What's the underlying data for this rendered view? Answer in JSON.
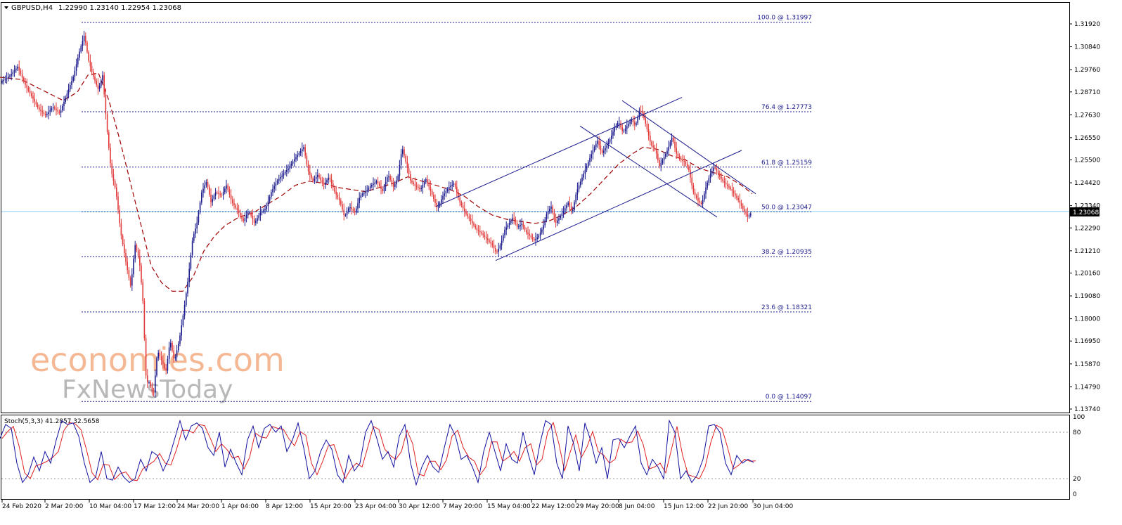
{
  "header": {
    "symbol": "GBPUSD,H4",
    "ohlc": "1.22990 1.23140 1.22954 1.23068"
  },
  "price_axis": {
    "ticks": [
      "1.31920",
      "1.30840",
      "1.29760",
      "1.28710",
      "1.27630",
      "1.26550",
      "1.25500",
      "1.24420",
      "1.23340",
      "1.22290",
      "1.21210",
      "1.20160",
      "1.19080",
      "1.18000",
      "1.16950",
      "1.15870",
      "1.14790",
      "1.13740"
    ],
    "current_price": "1.23068"
  },
  "time_axis": {
    "labels": [
      "24 Feb 2020",
      "2 Mar 20:00",
      "10 Mar 04:00",
      "17 Mar 12:00",
      "24 Mar 20:00",
      "1 Apr 04:00",
      "8 Apr 12:00",
      "15 Apr 20:00",
      "23 Apr 04:00",
      "30 Apr 12:00",
      "7 May 20:00",
      "15 May 04:00",
      "22 May 12:00",
      "29 May 20:00",
      "8 Jun 04:00",
      "15 Jun 12:00",
      "22 Jun 20:00",
      "30 Jun 04:00"
    ]
  },
  "stochastic": {
    "label": "Stoch(5,3,3) 41.2857 32.5658",
    "ticks": [
      "100",
      "80",
      "20",
      "0"
    ]
  },
  "watermark": {
    "line1": "economies.com",
    "line2": "FxNewsToday"
  },
  "colors": {
    "bull": "#1a1a8c",
    "bear": "#e23a3a",
    "ma": "#a00000",
    "fib": "#1a1a8c",
    "current_line": "#87cefa",
    "stoch_main": "#1010a0",
    "stoch_signal": "#e02020",
    "watermark_orange": "#f0a070",
    "watermark_gray": "#9a9a9a"
  },
  "chart_data": {
    "type": "candlestick",
    "symbol": "GBPUSD",
    "timeframe": "H4",
    "ylim": [
      1.133,
      1.325
    ],
    "fibonacci": [
      {
        "label": "100.0 @ 1.31997",
        "price": 1.31997
      },
      {
        "label": "76.4 @ 1.27773",
        "price": 1.27773
      },
      {
        "label": "61.8 @ 1.25159",
        "price": 1.25159
      },
      {
        "label": "50.0 @ 1.23047",
        "price": 1.23047
      },
      {
        "label": "38.2 @ 1.20935",
        "price": 1.20935
      },
      {
        "label": "23.6 @ 1.18321",
        "price": 1.18321
      },
      {
        "label": "0.0 @ 1.14097",
        "price": 1.14097
      }
    ],
    "close_path": [
      [
        0,
        1.2915
      ],
      [
        15,
        1.295
      ],
      [
        25,
        1.299
      ],
      [
        35,
        1.291
      ],
      [
        45,
        1.285
      ],
      [
        55,
        1.279
      ],
      [
        65,
        1.276
      ],
      [
        75,
        1.28
      ],
      [
        85,
        1.277
      ],
      [
        95,
        1.286
      ],
      [
        105,
        1.295
      ],
      [
        112,
        1.305
      ],
      [
        120,
        1.314
      ],
      [
        126,
        1.302
      ],
      [
        132,
        1.295
      ],
      [
        140,
        1.288
      ],
      [
        146,
        1.295
      ],
      [
        152,
        1.27
      ],
      [
        158,
        1.25
      ],
      [
        165,
        1.24
      ],
      [
        172,
        1.22
      ],
      [
        180,
        1.205
      ],
      [
        186,
        1.195
      ],
      [
        192,
        1.215
      ],
      [
        198,
        1.208
      ],
      [
        203,
        1.19
      ],
      [
        208,
        1.15
      ],
      [
        213,
        1.15
      ],
      [
        218,
        1.143
      ],
      [
        224,
        1.165
      ],
      [
        230,
        1.16
      ],
      [
        236,
        1.155
      ],
      [
        242,
        1.17
      ],
      [
        248,
        1.16
      ],
      [
        255,
        1.17
      ],
      [
        262,
        1.185
      ],
      [
        268,
        1.2
      ],
      [
        274,
        1.218
      ],
      [
        280,
        1.225
      ],
      [
        287,
        1.24
      ],
      [
        294,
        1.245
      ],
      [
        300,
        1.235
      ],
      [
        307,
        1.24
      ],
      [
        315,
        1.238
      ],
      [
        322,
        1.243
      ],
      [
        330,
        1.235
      ],
      [
        338,
        1.231
      ],
      [
        346,
        1.226
      ],
      [
        354,
        1.231
      ],
      [
        362,
        1.225
      ],
      [
        370,
        1.23
      ],
      [
        378,
        1.232
      ],
      [
        386,
        1.24
      ],
      [
        394,
        1.245
      ],
      [
        402,
        1.248
      ],
      [
        410,
        1.251
      ],
      [
        418,
        1.255
      ],
      [
        425,
        1.258
      ],
      [
        432,
        1.261
      ],
      [
        438,
        1.25
      ],
      [
        445,
        1.245
      ],
      [
        452,
        1.248
      ],
      [
        460,
        1.243
      ],
      [
        468,
        1.247
      ],
      [
        476,
        1.24
      ],
      [
        484,
        1.235
      ],
      [
        490,
        1.228
      ],
      [
        497,
        1.233
      ],
      [
        505,
        1.23
      ],
      [
        512,
        1.238
      ],
      [
        520,
        1.24
      ],
      [
        528,
        1.243
      ],
      [
        536,
        1.245
      ],
      [
        544,
        1.24
      ],
      [
        552,
        1.248
      ],
      [
        560,
        1.242
      ],
      [
        566,
        1.247
      ],
      [
        572,
        1.261
      ],
      [
        578,
        1.253
      ],
      [
        584,
        1.245
      ],
      [
        590,
        1.243
      ],
      [
        598,
        1.241
      ],
      [
        606,
        1.246
      ],
      [
        614,
        1.239
      ],
      [
        622,
        1.232
      ],
      [
        630,
        1.238
      ],
      [
        638,
        1.242
      ],
      [
        646,
        1.244
      ],
      [
        654,
        1.235
      ],
      [
        662,
        1.23
      ],
      [
        670,
        1.226
      ],
      [
        678,
        1.222
      ],
      [
        686,
        1.22
      ],
      [
        694,
        1.217
      ],
      [
        700,
        1.215
      ],
      [
        706,
        1.211
      ],
      [
        712,
        1.215
      ],
      [
        718,
        1.222
      ],
      [
        724,
        1.225
      ],
      [
        730,
        1.228
      ],
      [
        736,
        1.223
      ],
      [
        742,
        1.225
      ],
      [
        748,
        1.221
      ],
      [
        754,
        1.219
      ],
      [
        760,
        1.217
      ],
      [
        766,
        1.219
      ],
      [
        772,
        1.223
      ],
      [
        778,
        1.23
      ],
      [
        784,
        1.233
      ],
      [
        790,
        1.225
      ],
      [
        796,
        1.228
      ],
      [
        802,
        1.231
      ],
      [
        808,
        1.235
      ],
      [
        814,
        1.23
      ],
      [
        820,
        1.24
      ],
      [
        826,
        1.245
      ],
      [
        832,
        1.25
      ],
      [
        838,
        1.255
      ],
      [
        844,
        1.26
      ],
      [
        850,
        1.264
      ],
      [
        856,
        1.258
      ],
      [
        862,
        1.261
      ],
      [
        868,
        1.265
      ],
      [
        874,
        1.27
      ],
      [
        880,
        1.273
      ],
      [
        886,
        1.268
      ],
      [
        892,
        1.271
      ],
      [
        898,
        1.274
      ],
      [
        904,
        1.271
      ],
      [
        910,
        1.279
      ],
      [
        914,
        1.277
      ],
      [
        920,
        1.27
      ],
      [
        926,
        1.262
      ],
      [
        932,
        1.26
      ],
      [
        938,
        1.252
      ],
      [
        944,
        1.256
      ],
      [
        950,
        1.26
      ],
      [
        956,
        1.266
      ],
      [
        962,
        1.258
      ],
      [
        968,
        1.255
      ],
      [
        974,
        1.254
      ],
      [
        980,
        1.25
      ],
      [
        986,
        1.24
      ],
      [
        992,
        1.236
      ],
      [
        998,
        1.234
      ],
      [
        1004,
        1.242
      ],
      [
        1010,
        1.248
      ],
      [
        1016,
        1.252
      ],
      [
        1022,
        1.248
      ],
      [
        1028,
        1.245
      ],
      [
        1034,
        1.243
      ],
      [
        1040,
        1.241
      ],
      [
        1046,
        1.238
      ],
      [
        1052,
        1.235
      ],
      [
        1058,
        1.231
      ],
      [
        1064,
        1.228
      ],
      [
        1070,
        1.2307
      ]
    ],
    "ma_path": [
      [
        0,
        1.294
      ],
      [
        30,
        1.293
      ],
      [
        60,
        1.288
      ],
      [
        90,
        1.283
      ],
      [
        110,
        1.287
      ],
      [
        125,
        1.295
      ],
      [
        140,
        1.296
      ],
      [
        155,
        1.283
      ],
      [
        170,
        1.265
      ],
      [
        185,
        1.245
      ],
      [
        200,
        1.225
      ],
      [
        215,
        1.205
      ],
      [
        230,
        1.197
      ],
      [
        245,
        1.193
      ],
      [
        260,
        1.193
      ],
      [
        275,
        1.2
      ],
      [
        290,
        1.212
      ],
      [
        305,
        1.219
      ],
      [
        320,
        1.224
      ],
      [
        340,
        1.228
      ],
      [
        360,
        1.23
      ],
      [
        380,
        1.234
      ],
      [
        400,
        1.238
      ],
      [
        420,
        1.243
      ],
      [
        440,
        1.245
      ],
      [
        460,
        1.244
      ],
      [
        480,
        1.242
      ],
      [
        500,
        1.241
      ],
      [
        520,
        1.24
      ],
      [
        540,
        1.242
      ],
      [
        560,
        1.244
      ],
      [
        580,
        1.247
      ],
      [
        600,
        1.245
      ],
      [
        620,
        1.243
      ],
      [
        640,
        1.241
      ],
      [
        660,
        1.238
      ],
      [
        680,
        1.233
      ],
      [
        700,
        1.229
      ],
      [
        720,
        1.227
      ],
      [
        740,
        1.226
      ],
      [
        760,
        1.225
      ],
      [
        780,
        1.226
      ],
      [
        800,
        1.229
      ],
      [
        820,
        1.233
      ],
      [
        840,
        1.239
      ],
      [
        860,
        1.246
      ],
      [
        880,
        1.253
      ],
      [
        900,
        1.258
      ],
      [
        915,
        1.261
      ],
      [
        935,
        1.26
      ],
      [
        955,
        1.257
      ],
      [
        975,
        1.255
      ],
      [
        995,
        1.251
      ],
      [
        1015,
        1.249
      ],
      [
        1035,
        1.247
      ],
      [
        1055,
        1.243
      ],
      [
        1070,
        1.239
      ]
    ],
    "trend_lines": [
      {
        "name": "channel-upper-rising",
        "from": [
          620,
          1.233
        ],
        "to": [
          970,
          1.2845
        ]
      },
      {
        "name": "channel-lower-rising",
        "from": [
          705,
          1.2075
        ],
        "to": [
          1055,
          1.2595
        ]
      },
      {
        "name": "channel-upper-falling",
        "from": [
          885,
          1.283
        ],
        "to": [
          1075,
          1.239
        ]
      },
      {
        "name": "channel-lower-falling",
        "from": [
          825,
          1.271
        ],
        "to": [
          1020,
          1.228
        ]
      }
    ],
    "stoch_path": [
      [
        0,
        72
      ],
      [
        8,
        90
      ],
      [
        16,
        85
      ],
      [
        24,
        40
      ],
      [
        32,
        15
      ],
      [
        40,
        25
      ],
      [
        48,
        48
      ],
      [
        56,
        30
      ],
      [
        64,
        55
      ],
      [
        72,
        40
      ],
      [
        80,
        70
      ],
      [
        88,
        95
      ],
      [
        96,
        90
      ],
      [
        104,
        92
      ],
      [
        112,
        75
      ],
      [
        120,
        40
      ],
      [
        128,
        15
      ],
      [
        136,
        22
      ],
      [
        144,
        55
      ],
      [
        152,
        20
      ],
      [
        160,
        18
      ],
      [
        168,
        35
      ],
      [
        176,
        22
      ],
      [
        184,
        15
      ],
      [
        192,
        20
      ],
      [
        200,
        45
      ],
      [
        208,
        30
      ],
      [
        216,
        55
      ],
      [
        224,
        50
      ],
      [
        232,
        30
      ],
      [
        240,
        45
      ],
      [
        248,
        70
      ],
      [
        256,
        95
      ],
      [
        264,
        70
      ],
      [
        272,
        88
      ],
      [
        280,
        92
      ],
      [
        288,
        85
      ],
      [
        296,
        60
      ],
      [
        304,
        50
      ],
      [
        312,
        80
      ],
      [
        320,
        35
      ],
      [
        328,
        58
      ],
      [
        336,
        40
      ],
      [
        344,
        25
      ],
      [
        352,
        70
      ],
      [
        360,
        88
      ],
      [
        368,
        60
      ],
      [
        376,
        85
      ],
      [
        384,
        90
      ],
      [
        392,
        80
      ],
      [
        400,
        88
      ],
      [
        408,
        55
      ],
      [
        416,
        70
      ],
      [
        424,
        92
      ],
      [
        432,
        60
      ],
      [
        440,
        20
      ],
      [
        448,
        30
      ],
      [
        456,
        55
      ],
      [
        464,
        70
      ],
      [
        472,
        58
      ],
      [
        480,
        25
      ],
      [
        488,
        15
      ],
      [
        496,
        50
      ],
      [
        504,
        30
      ],
      [
        512,
        40
      ],
      [
        520,
        80
      ],
      [
        528,
        95
      ],
      [
        536,
        72
      ],
      [
        544,
        45
      ],
      [
        552,
        55
      ],
      [
        560,
        35
      ],
      [
        568,
        75
      ],
      [
        576,
        90
      ],
      [
        584,
        40
      ],
      [
        592,
        12
      ],
      [
        600,
        35
      ],
      [
        608,
        50
      ],
      [
        616,
        35
      ],
      [
        624,
        28
      ],
      [
        632,
        60
      ],
      [
        640,
        90
      ],
      [
        648,
        75
      ],
      [
        656,
        45
      ],
      [
        664,
        50
      ],
      [
        672,
        35
      ],
      [
        680,
        15
      ],
      [
        688,
        55
      ],
      [
        696,
        80
      ],
      [
        704,
        55
      ],
      [
        712,
        30
      ],
      [
        720,
        65
      ],
      [
        728,
        45
      ],
      [
        736,
        40
      ],
      [
        744,
        80
      ],
      [
        752,
        50
      ],
      [
        760,
        25
      ],
      [
        768,
        65
      ],
      [
        776,
        95
      ],
      [
        784,
        90
      ],
      [
        792,
        40
      ],
      [
        800,
        20
      ],
      [
        808,
        88
      ],
      [
        816,
        65
      ],
      [
        824,
        30
      ],
      [
        832,
        92
      ],
      [
        840,
        70
      ],
      [
        848,
        40
      ],
      [
        856,
        60
      ],
      [
        864,
        20
      ],
      [
        872,
        70
      ],
      [
        880,
        72
      ],
      [
        888,
        60
      ],
      [
        896,
        75
      ],
      [
        904,
        88
      ],
      [
        912,
        40
      ],
      [
        920,
        25
      ],
      [
        928,
        45
      ],
      [
        936,
        35
      ],
      [
        944,
        20
      ],
      [
        952,
        95
      ],
      [
        960,
        80
      ],
      [
        968,
        20
      ],
      [
        976,
        30
      ],
      [
        984,
        15
      ],
      [
        992,
        25
      ],
      [
        1000,
        45
      ],
      [
        1008,
        88
      ],
      [
        1016,
        90
      ],
      [
        1024,
        80
      ],
      [
        1032,
        40
      ],
      [
        1040,
        25
      ],
      [
        1048,
        50
      ],
      [
        1056,
        40
      ],
      [
        1064,
        45
      ],
      [
        1072,
        41
      ]
    ]
  }
}
